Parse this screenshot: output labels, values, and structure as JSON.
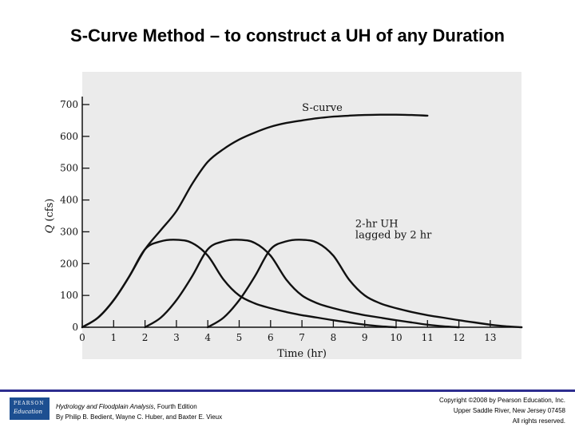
{
  "slide": {
    "title": "S-Curve Method – to construct a UH of any Duration"
  },
  "chart_data": {
    "type": "line",
    "title": "",
    "xlabel": "Time (hr)",
    "ylabel_var": "Q",
    "ylabel_unit": "(cfs)",
    "xlim": [
      0,
      14
    ],
    "ylim": [
      0,
      700
    ],
    "x_ticks": [
      0,
      1,
      2,
      3,
      4,
      5,
      6,
      7,
      8,
      9,
      10,
      11,
      12,
      13
    ],
    "y_ticks": [
      0,
      100,
      200,
      300,
      400,
      500,
      600,
      700
    ],
    "grid": false,
    "annotations": [
      {
        "text": "S-curve",
        "x": 7.0,
        "y": 680
      },
      {
        "text": "2-hr UH",
        "x": 8.7,
        "y": 315
      },
      {
        "text": "lagged by 2 hr",
        "x": 8.7,
        "y": 280
      }
    ],
    "series": [
      {
        "name": "S-curve",
        "x": [
          0,
          0.5,
          1,
          1.5,
          2,
          2.5,
          3,
          3.5,
          4,
          4.5,
          5,
          5.5,
          6,
          6.5,
          7,
          7.5,
          8,
          8.5,
          9,
          9.5,
          10,
          10.5,
          11
        ],
        "y": [
          0,
          30,
          85,
          160,
          245,
          305,
          365,
          450,
          520,
          560,
          590,
          612,
          630,
          642,
          650,
          657,
          662,
          665,
          667,
          668,
          668,
          667,
          665
        ]
      },
      {
        "name": "2-hr UH (0 hr)",
        "x": [
          0,
          0.5,
          1,
          1.5,
          2,
          2.5,
          3,
          3.5,
          4,
          4.5,
          5,
          5.5,
          6,
          6.5,
          7,
          7.5,
          8,
          8.5,
          9,
          9.5,
          10
        ],
        "y": [
          0,
          30,
          85,
          160,
          245,
          270,
          275,
          265,
          225,
          150,
          100,
          75,
          60,
          48,
          38,
          30,
          22,
          15,
          8,
          3,
          0
        ]
      },
      {
        "name": "2-hr UH (2 hr)",
        "x": [
          2,
          2.5,
          3,
          3.5,
          4,
          4.5,
          5,
          5.5,
          6,
          6.5,
          7,
          7.5,
          8,
          8.5,
          9,
          9.5,
          10,
          10.5,
          11,
          11.5,
          12
        ],
        "y": [
          0,
          30,
          85,
          160,
          245,
          270,
          275,
          265,
          225,
          150,
          100,
          75,
          60,
          48,
          38,
          30,
          22,
          15,
          8,
          3,
          0
        ]
      },
      {
        "name": "2-hr UH (4 hr)",
        "x": [
          4,
          4.5,
          5,
          5.5,
          6,
          6.5,
          7,
          7.5,
          8,
          8.5,
          9,
          9.5,
          10,
          10.5,
          11,
          11.5,
          12,
          12.5,
          13,
          13.5,
          14
        ],
        "y": [
          0,
          30,
          85,
          160,
          245,
          270,
          275,
          265,
          225,
          150,
          100,
          75,
          60,
          48,
          38,
          30,
          22,
          15,
          8,
          3,
          0
        ]
      }
    ]
  },
  "footer": {
    "book_title": "Hydrology and Floodplain Analysis",
    "edition": ", Fourth Edition",
    "authors": "By Philip B. Bedient, Wayne C. Huber, and Baxter E. Vieux",
    "copyright_line1": "Copyright ©2008 by Pearson Education, Inc.",
    "copyright_line2": "Upper Saddle River, New Jersey 07458",
    "copyright_line3": "All rights reserved.",
    "logo_top": "PEARSON",
    "logo_bottom": "Education"
  }
}
